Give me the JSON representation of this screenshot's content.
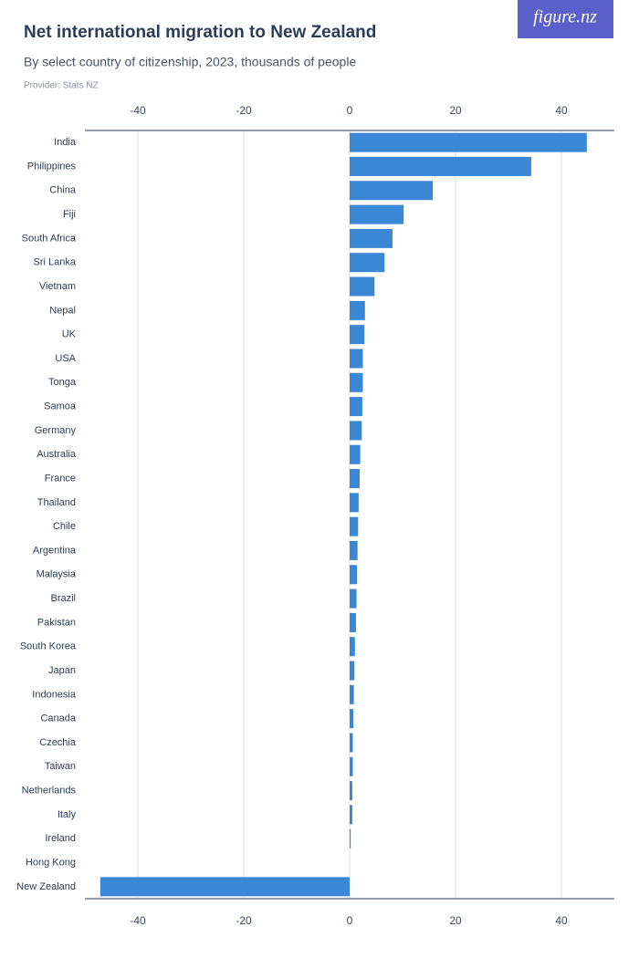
{
  "logo": "figure.nz",
  "chart_data": {
    "type": "bar",
    "orientation": "horizontal",
    "title": "Net international migration to New Zealand",
    "subtitle": "By select country of citizenship, 2023, thousands of people",
    "source": "Provider: Stats NZ",
    "categories": [
      "India",
      "Philippines",
      "China",
      "Fiji",
      "South Africa",
      "Sri Lanka",
      "Vietnam",
      "Nepal",
      "UK",
      "USA",
      "Tonga",
      "Samoa",
      "Germany",
      "Australia",
      "France",
      "Thailand",
      "Chile",
      "Argentina",
      "Malaysia",
      "Brazil",
      "Pakistan",
      "South Korea",
      "Japan",
      "Indonesia",
      "Canada",
      "Czechia",
      "Taiwan",
      "Netherlands",
      "Italy",
      "Ireland",
      "Hong Kong",
      "New Zealand"
    ],
    "values": [
      44.8,
      34.3,
      15.7,
      10.2,
      8.1,
      6.6,
      4.7,
      2.9,
      2.8,
      2.5,
      2.5,
      2.4,
      2.3,
      2.0,
      1.9,
      1.7,
      1.6,
      1.5,
      1.4,
      1.3,
      1.2,
      1.0,
      0.9,
      0.8,
      0.7,
      0.6,
      0.6,
      0.5,
      0.5,
      0.2,
      0.0,
      -47.1
    ],
    "color": "#3a87d6",
    "xlim": [
      -50,
      50
    ],
    "xticks": [
      -40,
      -20,
      0,
      20,
      40
    ],
    "grid": true
  }
}
